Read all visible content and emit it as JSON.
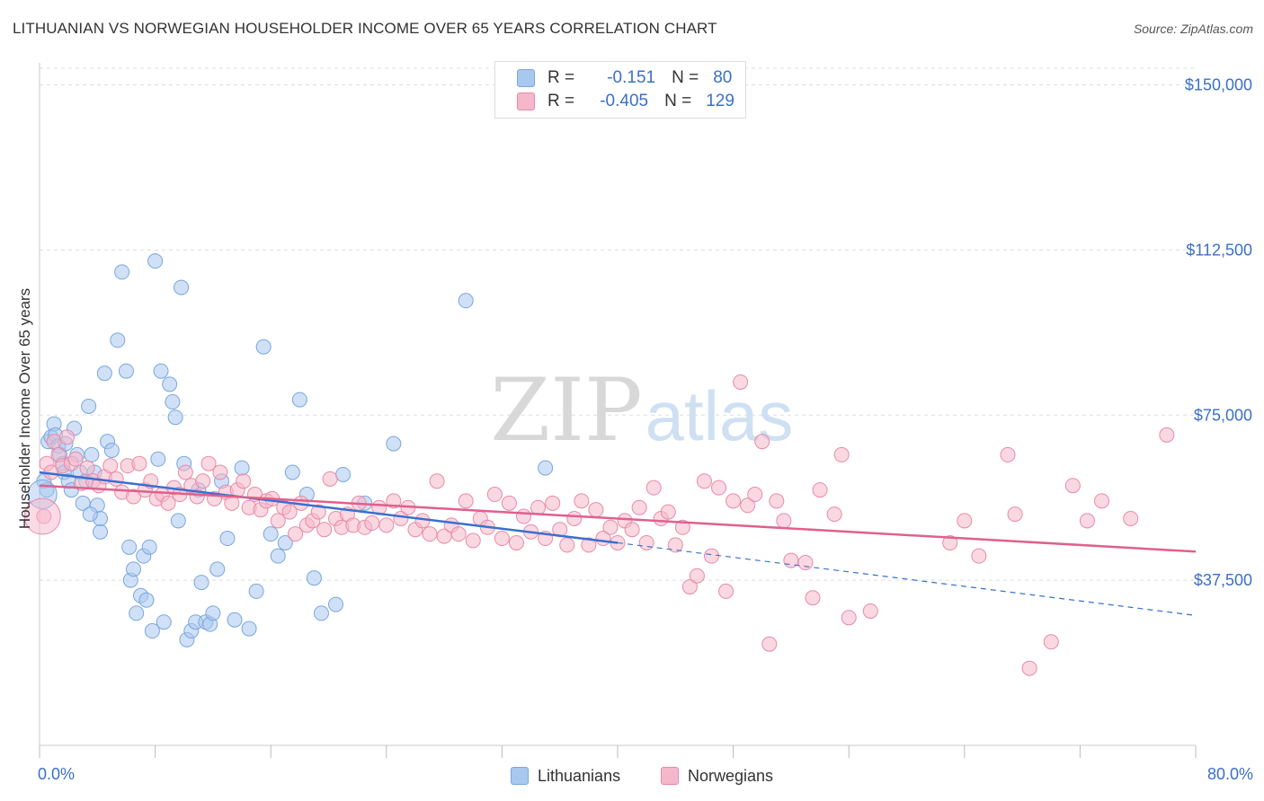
{
  "title": "LITHUANIAN VS NORWEGIAN HOUSEHOLDER INCOME OVER 65 YEARS CORRELATION CHART",
  "source": "Source: ZipAtlas.com",
  "watermark": {
    "zip": "ZIP",
    "atlas": "atlas"
  },
  "legend": {
    "rows": [
      {
        "r_label": "R =",
        "r_value": "-0.151",
        "n_label": "N =",
        "n_value": "80",
        "color": "#a9c8f0"
      },
      {
        "r_label": "R =",
        "r_value": "-0.405",
        "n_label": "N =",
        "n_value": "129",
        "color": "#f5b8cb"
      }
    ]
  },
  "bottom_legend": [
    {
      "label": "Lithuanians",
      "color": "#a9c8f0"
    },
    {
      "label": "Norwegians",
      "color": "#f5b8cb"
    }
  ],
  "colors": {
    "blue_fill": "#a9c8f0",
    "blue_stroke": "#7aa6dd",
    "blue_line": "#3a6fd0",
    "pink_fill": "#f5b8cb",
    "pink_stroke": "#e88aa8",
    "pink_line": "#e0608c",
    "axis_text": "#3b6fc8",
    "grid": "#dddddd"
  },
  "chart_data": {
    "type": "scatter",
    "title": "LITHUANIAN VS NORWEGIAN HOUSEHOLDER INCOME OVER 65 YEARS CORRELATION CHART",
    "xlabel": "",
    "ylabel": "Householder Income Over 65 years",
    "xlim": [
      0,
      80
    ],
    "ylim": [
      0,
      155000
    ],
    "x_tick_labels": [
      "0.0%",
      "80.0%"
    ],
    "y_ticks": [
      37500,
      75000,
      112500,
      150000
    ],
    "y_tick_labels": [
      "$37,500",
      "$75,000",
      "$112,500",
      "$150,000"
    ],
    "grid": true,
    "legend_position": "top-center",
    "series": [
      {
        "name": "Lithuanians",
        "points": [
          [
            0.3,
            60000
          ],
          [
            0.5,
            58000
          ],
          [
            0.6,
            69000
          ],
          [
            0.8,
            70000
          ],
          [
            1.0,
            73000
          ],
          [
            1.1,
            70500
          ],
          [
            1.3,
            68000
          ],
          [
            1.4,
            66000
          ],
          [
            1.6,
            64000
          ],
          [
            1.7,
            62000
          ],
          [
            1.8,
            68500
          ],
          [
            2.0,
            60000
          ],
          [
            2.2,
            58000
          ],
          [
            2.4,
            72000
          ],
          [
            2.6,
            66000
          ],
          [
            2.8,
            62000
          ],
          [
            3.0,
            55000
          ],
          [
            3.2,
            60000
          ],
          [
            3.4,
            77000
          ],
          [
            3.6,
            66000
          ],
          [
            3.8,
            62000
          ],
          [
            4.0,
            54500
          ],
          [
            4.2,
            48500
          ],
          [
            4.5,
            84500
          ],
          [
            4.7,
            69000
          ],
          [
            5.0,
            67000
          ],
          [
            5.4,
            92000
          ],
          [
            5.7,
            107500
          ],
          [
            6.0,
            85000
          ],
          [
            6.2,
            45000
          ],
          [
            6.3,
            37500
          ],
          [
            6.5,
            40000
          ],
          [
            6.7,
            30000
          ],
          [
            7.0,
            34000
          ],
          [
            7.2,
            43000
          ],
          [
            7.4,
            33000
          ],
          [
            7.6,
            45000
          ],
          [
            7.8,
            26000
          ],
          [
            8.0,
            110000
          ],
          [
            8.2,
            65000
          ],
          [
            8.4,
            85000
          ],
          [
            8.6,
            28000
          ],
          [
            9.0,
            82000
          ],
          [
            9.2,
            78000
          ],
          [
            9.4,
            74500
          ],
          [
            9.6,
            51000
          ],
          [
            9.8,
            104000
          ],
          [
            10.0,
            64000
          ],
          [
            10.2,
            24000
          ],
          [
            10.5,
            26000
          ],
          [
            10.8,
            28000
          ],
          [
            11.0,
            58000
          ],
          [
            11.2,
            37000
          ],
          [
            11.5,
            28000
          ],
          [
            11.8,
            27500
          ],
          [
            12.0,
            30000
          ],
          [
            12.3,
            40000
          ],
          [
            12.6,
            60000
          ],
          [
            13.0,
            47000
          ],
          [
            13.5,
            28500
          ],
          [
            14.0,
            63000
          ],
          [
            14.5,
            26500
          ],
          [
            15.0,
            35000
          ],
          [
            15.5,
            90500
          ],
          [
            16.0,
            48000
          ],
          [
            16.5,
            43000
          ],
          [
            17.0,
            46000
          ],
          [
            17.5,
            62000
          ],
          [
            18.0,
            78500
          ],
          [
            18.5,
            57000
          ],
          [
            19.0,
            38000
          ],
          [
            19.5,
            30000
          ],
          [
            20.5,
            32000
          ],
          [
            21.0,
            61500
          ],
          [
            22.5,
            55000
          ],
          [
            24.5,
            68500
          ],
          [
            29.5,
            101000
          ],
          [
            35.0,
            63000
          ],
          [
            4.2,
            51500
          ],
          [
            3.5,
            52500
          ]
        ],
        "trend": {
          "x0": 0,
          "y0": 62000,
          "x1": 40,
          "y1": 46000,
          "dashed_to_x": 80,
          "dashed_to_y": 29500
        }
      },
      {
        "name": "Norwegians",
        "points": [
          [
            0.3,
            52000
          ],
          [
            0.5,
            64000
          ],
          [
            0.8,
            62000
          ],
          [
            1.0,
            69000
          ],
          [
            1.3,
            66000
          ],
          [
            1.6,
            63500
          ],
          [
            1.9,
            70000
          ],
          [
            2.2,
            64000
          ],
          [
            2.5,
            65000
          ],
          [
            2.9,
            59500
          ],
          [
            3.3,
            63000
          ],
          [
            3.7,
            60000
          ],
          [
            4.1,
            59000
          ],
          [
            4.5,
            61000
          ],
          [
            4.9,
            63500
          ],
          [
            5.3,
            60500
          ],
          [
            5.7,
            57500
          ],
          [
            6.1,
            63500
          ],
          [
            6.5,
            56500
          ],
          [
            6.9,
            64000
          ],
          [
            7.3,
            58000
          ],
          [
            7.7,
            60000
          ],
          [
            8.1,
            56000
          ],
          [
            8.5,
            57000
          ],
          [
            8.9,
            55000
          ],
          [
            9.3,
            58500
          ],
          [
            9.7,
            57000
          ],
          [
            10.1,
            62000
          ],
          [
            10.5,
            59000
          ],
          [
            10.9,
            56500
          ],
          [
            11.3,
            60000
          ],
          [
            11.7,
            64000
          ],
          [
            12.1,
            56000
          ],
          [
            12.5,
            62000
          ],
          [
            12.9,
            57500
          ],
          [
            13.3,
            55000
          ],
          [
            13.7,
            58000
          ],
          [
            14.1,
            60000
          ],
          [
            14.5,
            54000
          ],
          [
            14.9,
            57000
          ],
          [
            15.3,
            53500
          ],
          [
            15.7,
            55500
          ],
          [
            16.1,
            56000
          ],
          [
            16.5,
            51000
          ],
          [
            16.9,
            54000
          ],
          [
            17.3,
            53000
          ],
          [
            17.7,
            48000
          ],
          [
            18.1,
            55000
          ],
          [
            18.5,
            50000
          ],
          [
            18.9,
            51000
          ],
          [
            19.3,
            53000
          ],
          [
            19.7,
            49000
          ],
          [
            20.1,
            60500
          ],
          [
            20.5,
            51500
          ],
          [
            20.9,
            49500
          ],
          [
            21.3,
            52500
          ],
          [
            21.7,
            50000
          ],
          [
            22.1,
            55000
          ],
          [
            22.5,
            49500
          ],
          [
            23.0,
            50500
          ],
          [
            23.5,
            54000
          ],
          [
            24.0,
            50000
          ],
          [
            24.5,
            55500
          ],
          [
            25.0,
            51500
          ],
          [
            25.5,
            54000
          ],
          [
            26.0,
            49000
          ],
          [
            26.5,
            51000
          ],
          [
            27.0,
            48000
          ],
          [
            27.5,
            60000
          ],
          [
            28.0,
            47500
          ],
          [
            28.5,
            50000
          ],
          [
            29.0,
            48000
          ],
          [
            29.5,
            55500
          ],
          [
            30.0,
            46500
          ],
          [
            30.5,
            51500
          ],
          [
            31.0,
            49500
          ],
          [
            31.5,
            57000
          ],
          [
            32.0,
            47000
          ],
          [
            32.5,
            55000
          ],
          [
            33.0,
            46000
          ],
          [
            33.5,
            52000
          ],
          [
            34.0,
            48500
          ],
          [
            34.5,
            54000
          ],
          [
            35.0,
            47000
          ],
          [
            35.5,
            55000
          ],
          [
            36.0,
            49000
          ],
          [
            36.5,
            45500
          ],
          [
            37.0,
            51500
          ],
          [
            37.5,
            55500
          ],
          [
            38.0,
            45500
          ],
          [
            38.5,
            53500
          ],
          [
            39.0,
            47000
          ],
          [
            39.5,
            49500
          ],
          [
            40.0,
            46000
          ],
          [
            40.5,
            51000
          ],
          [
            41.0,
            49000
          ],
          [
            41.5,
            54000
          ],
          [
            42.0,
            46000
          ],
          [
            42.5,
            58500
          ],
          [
            43.0,
            51500
          ],
          [
            43.5,
            53000
          ],
          [
            44.0,
            45500
          ],
          [
            44.5,
            49500
          ],
          [
            45.0,
            36000
          ],
          [
            45.5,
            38500
          ],
          [
            46.0,
            60000
          ],
          [
            46.5,
            43000
          ],
          [
            47.0,
            58500
          ],
          [
            47.5,
            35000
          ],
          [
            48.0,
            55500
          ],
          [
            48.5,
            82500
          ],
          [
            49.0,
            54500
          ],
          [
            49.5,
            57000
          ],
          [
            50.0,
            69000
          ],
          [
            50.5,
            23000
          ],
          [
            51.0,
            55500
          ],
          [
            51.5,
            51000
          ],
          [
            52.0,
            42000
          ],
          [
            53.0,
            41500
          ],
          [
            53.5,
            33500
          ],
          [
            54.0,
            58000
          ],
          [
            55.0,
            52500
          ],
          [
            55.5,
            66000
          ],
          [
            56.0,
            29000
          ],
          [
            57.5,
            30500
          ],
          [
            63.0,
            46000
          ],
          [
            64.0,
            51000
          ],
          [
            65.0,
            43000
          ],
          [
            67.0,
            66000
          ],
          [
            67.5,
            52500
          ],
          [
            68.5,
            17500
          ],
          [
            70.0,
            23500
          ],
          [
            71.5,
            59000
          ],
          [
            72.5,
            51000
          ],
          [
            73.5,
            55500
          ],
          [
            75.5,
            51500
          ],
          [
            78.0,
            70500
          ]
        ],
        "trend": {
          "x0": 0,
          "y0": 59000,
          "x1": 80,
          "y1": 44000
        }
      }
    ]
  }
}
